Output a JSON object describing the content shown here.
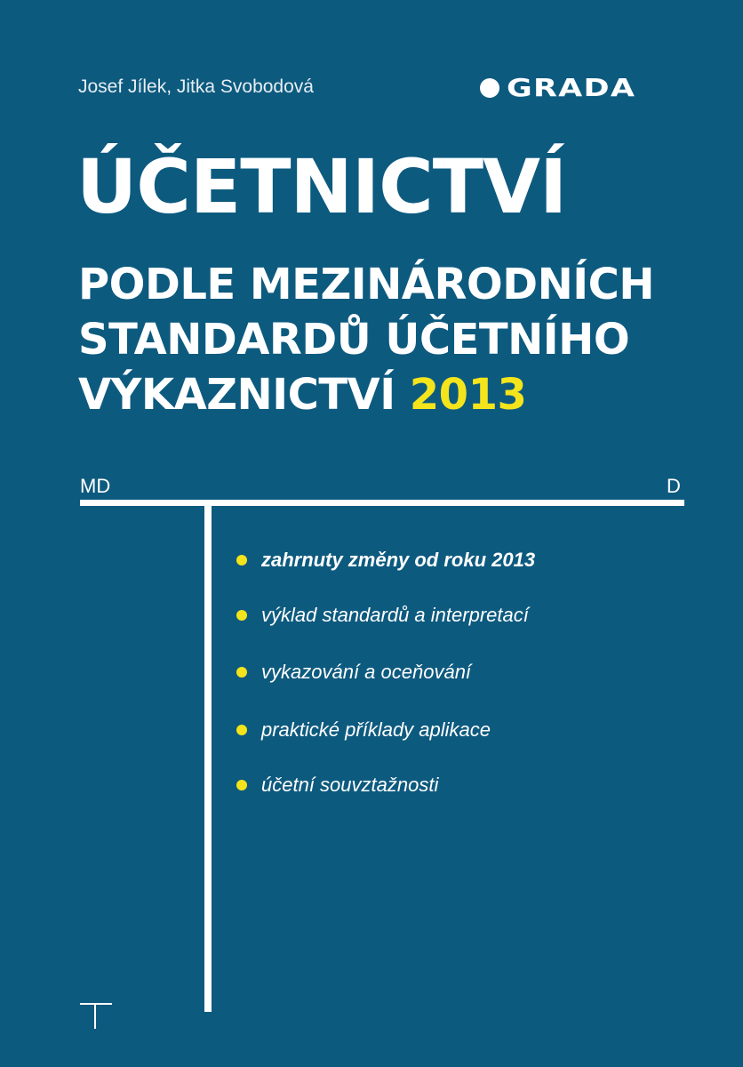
{
  "authors": "Josef Jílek, Jitka Svobodová",
  "publisher": "GRADA",
  "title": "ÚČETNICTVÍ",
  "subtitle_lines": [
    "PODLE MEZINÁRODNÍCH",
    "STANDARDŮ ÚČETNÍHO",
    "VÝKAZNICTVÍ"
  ],
  "year": "2013",
  "t_account": {
    "left": "MD",
    "right": "D"
  },
  "bullets": [
    "zahrnuty změny od roku 2013",
    "výklad standardů a interpretací",
    "vykazování a oceňování",
    "praktické příklady aplikace",
    "účetní souvztažnosti"
  ],
  "colors": {
    "background": "#0d5a7f",
    "accent": "#f4e41c",
    "text": "#ffffff"
  }
}
